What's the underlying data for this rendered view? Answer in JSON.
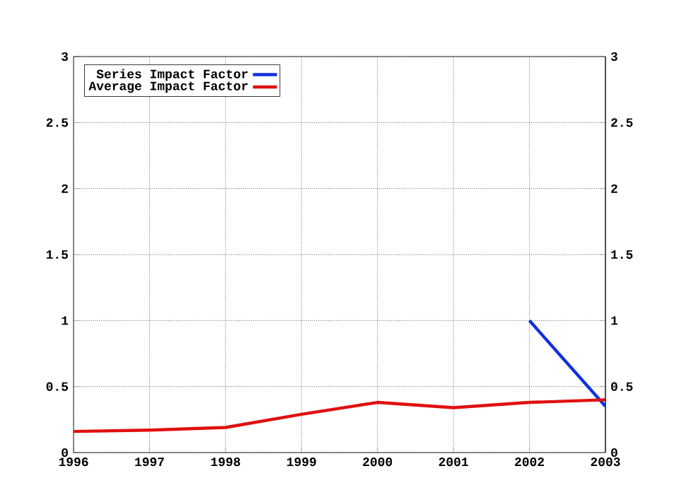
{
  "chart_data": {
    "type": "line",
    "x": [
      1996,
      1997,
      1998,
      1999,
      2000,
      2001,
      2002,
      2003
    ],
    "series": [
      {
        "name": "Series Impact Factor",
        "color": "#1030e0",
        "x": [
          2002,
          2003
        ],
        "values": [
          1.0,
          0.35
        ]
      },
      {
        "name": "Average Impact Factor",
        "color": "#e01010",
        "values": [
          0.16,
          0.17,
          0.19,
          0.29,
          0.38,
          0.34,
          0.38,
          0.4
        ]
      }
    ],
    "xlim": [
      1996,
      2003
    ],
    "xticks": [
      1996,
      1997,
      1998,
      1999,
      2000,
      2001,
      2002,
      2003
    ],
    "ylim": [
      0,
      3
    ],
    "yticks": [
      0,
      0.5,
      1,
      1.5,
      2,
      2.5,
      3
    ],
    "y2lim": [
      0,
      3
    ],
    "y2ticks": [
      0,
      0.5,
      1,
      1.5,
      2,
      2.5,
      3
    ],
    "grid": true,
    "legend": "top left"
  }
}
